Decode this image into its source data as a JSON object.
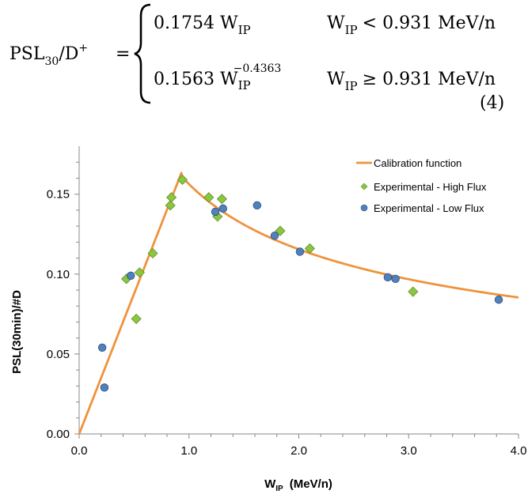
{
  "equation": {
    "lhs_base": "PSL",
    "lhs_sub": "30",
    "lhs_rest": "/D",
    "lhs_sup": "+",
    "equals": "=",
    "case1": {
      "coeff": "0.1754 W",
      "sub": "IP",
      "cond_W": "W",
      "cond_sub": "IP",
      "cond_rest": "< 0.931 MeV/n"
    },
    "case2": {
      "coeff": "0.1563 W",
      "sub": "IP",
      "sup": "−0.4363",
      "cond_W": "W",
      "cond_sub": "IP",
      "cond_rest": "≥ 0.931 MeV/n"
    },
    "number": "(4)"
  },
  "chart_data": {
    "type": "scatter",
    "title": "",
    "xlabel_main": "W",
    "xlabel_sub": "IP",
    "xlabel_unit": "(MeV/n)",
    "ylabel": "PSL(30min)/#D",
    "xlim": [
      0,
      4
    ],
    "ylim": [
      0,
      0.18
    ],
    "x_ticks": [
      {
        "v": 0,
        "label": "0.0"
      },
      {
        "v": 1,
        "label": "1.0"
      },
      {
        "v": 2,
        "label": "2.0"
      },
      {
        "v": 3,
        "label": "3.0"
      },
      {
        "v": 4,
        "label": "4.0"
      }
    ],
    "y_ticks": [
      {
        "v": 0,
        "label": "0.00"
      },
      {
        "v": 0.05,
        "label": "0.05"
      },
      {
        "v": 0.1,
        "label": "0.10"
      },
      {
        "v": 0.15,
        "label": "0.15"
      }
    ],
    "legend_position": "top-right",
    "series": [
      {
        "name": "Calibration function",
        "kind": "line",
        "color": "#F0923D",
        "breakpoint": 0.931,
        "linear_coeff": 0.1754,
        "power_coeff": 0.1563,
        "power_exp": -0.4363
      },
      {
        "name": "Experimental - High Flux",
        "kind": "diamond",
        "color": "#8CC63F",
        "stroke": "#5E8E2A",
        "points": [
          [
            0.43,
            0.097
          ],
          [
            0.52,
            0.072
          ],
          [
            0.55,
            0.101
          ],
          [
            0.67,
            0.113
          ],
          [
            0.83,
            0.143
          ],
          [
            0.84,
            0.148
          ],
          [
            0.94,
            0.159
          ],
          [
            1.18,
            0.148
          ],
          [
            1.26,
            0.136
          ],
          [
            1.3,
            0.147
          ],
          [
            1.83,
            0.127
          ],
          [
            2.1,
            0.116
          ],
          [
            3.04,
            0.089
          ]
        ]
      },
      {
        "name": "Experimental - Low Flux",
        "kind": "circle",
        "color": "#4F81BD",
        "stroke": "#2F4F7A",
        "points": [
          [
            0.21,
            0.054
          ],
          [
            0.23,
            0.029
          ],
          [
            0.47,
            0.099
          ],
          [
            1.24,
            0.139
          ],
          [
            1.31,
            0.141
          ],
          [
            1.62,
            0.143
          ],
          [
            1.78,
            0.124
          ],
          [
            2.01,
            0.114
          ],
          [
            2.81,
            0.098
          ],
          [
            2.88,
            0.097
          ],
          [
            3.82,
            0.084
          ]
        ]
      }
    ]
  }
}
